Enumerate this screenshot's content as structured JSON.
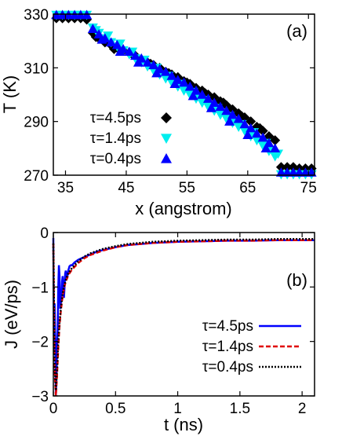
{
  "chart_data": [
    {
      "type": "scatter",
      "panel_label": "(a)",
      "xlabel": "x (angstrom)",
      "ylabel": "T (K)",
      "xlim": [
        33,
        76
      ],
      "ylim": [
        270,
        330
      ],
      "xticks": [
        35,
        45,
        55,
        65,
        75
      ],
      "yticks": [
        270,
        290,
        310,
        330
      ],
      "legend_position": "bottom-left",
      "series": [
        {
          "name": "τ=4.5ps",
          "marker": "diamond",
          "color": "#000000",
          "points": [
            [
              33.5,
              328.5
            ],
            [
              34.5,
              328.5
            ],
            [
              35.5,
              328.5
            ],
            [
              36.5,
              328.5
            ],
            [
              37.5,
              328.5
            ],
            [
              38.5,
              328
            ],
            [
              39.5,
              323
            ],
            [
              40.5,
              321
            ],
            [
              41.5,
              319.5
            ],
            [
              42.5,
              318.5
            ],
            [
              43.5,
              317.5
            ],
            [
              44.5,
              316.5
            ],
            [
              45.5,
              315.5
            ],
            [
              46.5,
              314.5
            ],
            [
              47.5,
              313
            ],
            [
              48.5,
              312
            ],
            [
              49.5,
              311
            ],
            [
              50.5,
              310
            ],
            [
              51.5,
              308.5
            ],
            [
              52.5,
              307.5
            ],
            [
              53.5,
              306.5
            ],
            [
              54.5,
              305
            ],
            [
              55.5,
              304
            ],
            [
              56.5,
              302.5
            ],
            [
              57.5,
              301.5
            ],
            [
              58.5,
              300
            ],
            [
              59.5,
              299
            ],
            [
              60.5,
              297.5
            ],
            [
              61.5,
              296
            ],
            [
              62.5,
              294.5
            ],
            [
              63.5,
              293
            ],
            [
              64.5,
              291.5
            ],
            [
              65.5,
              290
            ],
            [
              66.5,
              288
            ],
            [
              67.5,
              286.5
            ],
            [
              68.5,
              284.5
            ],
            [
              69.5,
              283
            ],
            [
              70.5,
              273
            ],
            [
              71.5,
              273
            ],
            [
              72.5,
              273
            ],
            [
              73.5,
              272.5
            ],
            [
              74.5,
              272.5
            ],
            [
              75.5,
              272.5
            ],
            [
              40,
              321.5
            ],
            [
              43,
              317
            ],
            [
              46,
              315
            ],
            [
              49,
              311.5
            ],
            [
              52,
              308
            ],
            [
              55,
              304.5
            ],
            [
              58,
              300.5
            ],
            [
              61,
              297
            ],
            [
              64,
              292
            ],
            [
              67,
              287.5
            ]
          ]
        },
        {
          "name": "τ=1.4ps",
          "marker": "triangle-down",
          "color": "#00eeee",
          "points": [
            [
              33.5,
              330
            ],
            [
              34.5,
              330
            ],
            [
              35.5,
              330
            ],
            [
              36.5,
              330
            ],
            [
              37.5,
              330
            ],
            [
              38.5,
              330
            ],
            [
              39.5,
              325
            ],
            [
              40.5,
              323
            ],
            [
              41.5,
              321
            ],
            [
              42.5,
              319.5
            ],
            [
              43.5,
              318
            ],
            [
              44.5,
              316.5
            ],
            [
              45.5,
              315
            ],
            [
              46.5,
              313.5
            ],
            [
              47.5,
              312
            ],
            [
              48.5,
              310.5
            ],
            [
              49.5,
              309
            ],
            [
              50.5,
              307.5
            ],
            [
              51.5,
              306
            ],
            [
              52.5,
              304.5
            ],
            [
              53.5,
              303
            ],
            [
              54.5,
              301.5
            ],
            [
              55.5,
              300
            ],
            [
              56.5,
              298.5
            ],
            [
              57.5,
              297
            ],
            [
              58.5,
              295.5
            ],
            [
              59.5,
              294
            ],
            [
              60.5,
              292.5
            ],
            [
              61.5,
              291
            ],
            [
              62.5,
              289.5
            ],
            [
              63.5,
              288
            ],
            [
              64.5,
              286.5
            ],
            [
              65.5,
              284.5
            ],
            [
              66.5,
              283
            ],
            [
              67.5,
              281
            ],
            [
              68.5,
              279
            ],
            [
              69.5,
              277
            ],
            [
              70.5,
              270
            ],
            [
              71.5,
              270
            ],
            [
              72.5,
              270
            ],
            [
              73.5,
              270
            ],
            [
              74.5,
              270
            ],
            [
              75.5,
              270
            ],
            [
              40,
              324
            ],
            [
              42,
              322
            ],
            [
              44,
              319
            ],
            [
              46,
              316
            ],
            [
              48,
              313
            ],
            [
              50,
              310
            ],
            [
              52,
              307
            ],
            [
              54,
              304
            ],
            [
              56,
              301
            ],
            [
              58,
              298
            ],
            [
              60,
              295
            ],
            [
              62,
              292
            ],
            [
              64,
              289
            ],
            [
              66,
              286
            ],
            [
              68,
              282
            ],
            [
              70,
              278
            ]
          ]
        },
        {
          "name": "τ=0.4ps",
          "marker": "triangle-up",
          "color": "#0000ff",
          "points": [
            [
              33.5,
              330
            ],
            [
              34.5,
              330
            ],
            [
              35.5,
              330
            ],
            [
              36.5,
              330
            ],
            [
              37.5,
              330
            ],
            [
              38.5,
              330
            ],
            [
              39.5,
              324.5
            ],
            [
              40.5,
              322.5
            ],
            [
              41.5,
              321
            ],
            [
              42.5,
              319.5
            ],
            [
              43.5,
              318.5
            ],
            [
              44.5,
              317
            ],
            [
              45.5,
              316
            ],
            [
              46.5,
              314.5
            ],
            [
              47.5,
              313.5
            ],
            [
              48.5,
              312
            ],
            [
              49.5,
              311
            ],
            [
              50.5,
              309.5
            ],
            [
              51.5,
              308.5
            ],
            [
              52.5,
              307
            ],
            [
              53.5,
              305.5
            ],
            [
              54.5,
              304.5
            ],
            [
              55.5,
              303
            ],
            [
              56.5,
              301.5
            ],
            [
              57.5,
              300
            ],
            [
              58.5,
              298.5
            ],
            [
              59.5,
              297
            ],
            [
              60.5,
              295.5
            ],
            [
              61.5,
              294
            ],
            [
              62.5,
              292.5
            ],
            [
              63.5,
              291
            ],
            [
              64.5,
              289
            ],
            [
              65.5,
              287.5
            ],
            [
              66.5,
              285.5
            ],
            [
              67.5,
              284
            ],
            [
              68.5,
              282
            ],
            [
              69.5,
              280
            ],
            [
              70.5,
              271
            ],
            [
              71.5,
              271
            ],
            [
              72.5,
              271
            ],
            [
              73.5,
              271
            ],
            [
              74.5,
              271
            ],
            [
              75.5,
              271
            ],
            [
              41,
              320.5
            ],
            [
              44,
              316
            ],
            [
              47,
              312
            ],
            [
              50,
              308
            ],
            [
              53,
              304
            ],
            [
              56,
              299.5
            ],
            [
              59,
              295
            ],
            [
              62,
              290
            ],
            [
              65,
              285
            ],
            [
              68,
              280
            ]
          ]
        }
      ]
    },
    {
      "type": "line",
      "panel_label": "(b)",
      "xlabel": "t (ns)",
      "ylabel": "J (eV/ps)",
      "xlim": [
        0,
        2.1
      ],
      "ylim": [
        -3,
        0
      ],
      "xticks": [
        "0",
        "0.5",
        "1",
        "1.5",
        "2"
      ],
      "yticks": [
        "0",
        "−1",
        "−2",
        "−3"
      ],
      "legend_position": "bottom-right",
      "series": [
        {
          "name": "τ=4.5ps",
          "style": "solid",
          "color": "#0000ff",
          "x": [
            0,
            0.005,
            0.01,
            0.015,
            0.02,
            0.025,
            0.03,
            0.035,
            0.04,
            0.045,
            0.05,
            0.055,
            0.06,
            0.065,
            0.07,
            0.075,
            0.08,
            0.085,
            0.09,
            0.095,
            0.1,
            0.11,
            0.12,
            0.13,
            0.14,
            0.15,
            0.17,
            0.2,
            0.25,
            0.3,
            0.35,
            0.4,
            0.5,
            0.6,
            0.7,
            0.8,
            0.9,
            1.0,
            1.2,
            1.4,
            1.6,
            1.8,
            2.0,
            2.1
          ],
          "values": [
            -0.1,
            -2.2,
            -1.3,
            -2.0,
            -3.0,
            -2.6,
            -2.0,
            -1.8,
            -1.0,
            -0.6,
            -0.8,
            -1.4,
            -1.3,
            -1.2,
            -0.9,
            -0.8,
            -1.0,
            -1.2,
            -1.0,
            -0.75,
            -0.7,
            -0.85,
            -0.7,
            -0.62,
            -0.6,
            -0.6,
            -0.55,
            -0.5,
            -0.45,
            -0.4,
            -0.35,
            -0.32,
            -0.27,
            -0.23,
            -0.21,
            -0.19,
            -0.18,
            -0.17,
            -0.16,
            -0.15,
            -0.15,
            -0.14,
            -0.14,
            -0.14
          ]
        },
        {
          "name": "τ=1.4ps",
          "style": "dashed",
          "color": "#e00000",
          "x": [
            0,
            0.01,
            0.02,
            0.03,
            0.04,
            0.05,
            0.06,
            0.07,
            0.08,
            0.09,
            0.1,
            0.12,
            0.15,
            0.2,
            0.25,
            0.3,
            0.4,
            0.5,
            0.6,
            0.7,
            0.8,
            0.9,
            1.0,
            1.2,
            1.4,
            1.6,
            1.8,
            2.0,
            2.1
          ],
          "values": [
            -0.2,
            -2.5,
            -3.0,
            -2.6,
            -2.1,
            -1.7,
            -1.45,
            -1.25,
            -1.1,
            -0.98,
            -0.9,
            -0.78,
            -0.68,
            -0.56,
            -0.47,
            -0.41,
            -0.33,
            -0.27,
            -0.23,
            -0.21,
            -0.19,
            -0.18,
            -0.17,
            -0.16,
            -0.15,
            -0.15,
            -0.14,
            -0.14,
            -0.14
          ]
        },
        {
          "name": "τ=0.4ps",
          "style": "dotted",
          "color": "#000000",
          "x": [
            0,
            0.01,
            0.02,
            0.03,
            0.04,
            0.05,
            0.06,
            0.07,
            0.08,
            0.09,
            0.1,
            0.12,
            0.15,
            0.2,
            0.25,
            0.3,
            0.4,
            0.5,
            0.6,
            0.7,
            0.8,
            0.9,
            1.0,
            1.2,
            1.4,
            1.6,
            1.8,
            2.0,
            2.1
          ],
          "values": [
            -0.2,
            -2.4,
            -2.9,
            -2.5,
            -2.0,
            -1.65,
            -1.4,
            -1.2,
            -1.05,
            -0.95,
            -0.87,
            -0.75,
            -0.65,
            -0.53,
            -0.44,
            -0.38,
            -0.3,
            -0.25,
            -0.21,
            -0.19,
            -0.17,
            -0.16,
            -0.15,
            -0.14,
            -0.13,
            -0.13,
            -0.12,
            -0.12,
            -0.12
          ]
        }
      ]
    }
  ]
}
